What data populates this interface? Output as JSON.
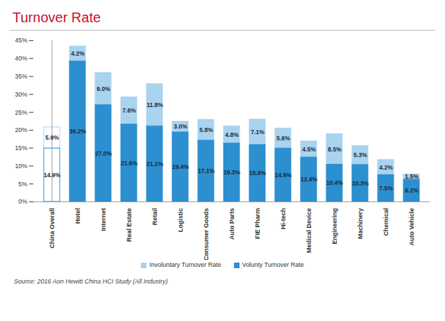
{
  "chart_data": {
    "type": "bar",
    "title": "Turnover Rate",
    "source": "Source: 2016 Aon Hewitt China HCI Study (All Industry)",
    "categories": [
      "China Overall",
      "Hotel",
      "Internet",
      "Real Estate",
      "Retail",
      "Logistic",
      "Consumer Goods",
      "Auto Parts",
      "FIE Pharm",
      "Hi-tech",
      "Medical Device",
      "Engineering",
      "Machinery",
      "Chemical",
      "Auto Vehicle"
    ],
    "series": [
      {
        "name": "Involuntary Turnover Rate",
        "color": "#a9d3ef",
        "values": [
          5.9,
          4.2,
          9.0,
          7.6,
          11.8,
          3.0,
          5.8,
          4.8,
          7.1,
          5.6,
          4.5,
          8.5,
          5.3,
          4.2,
          1.5
        ],
        "value_labels": [
          "5.9%",
          "4.2%",
          "9.0%",
          "7.6%",
          "11.8%",
          "3.0%",
          "5.8%",
          "4.8%",
          "7.1%",
          "5.6%",
          "4.5%",
          "8.5%",
          "5.3%",
          "4.2%",
          "1.5%"
        ]
      },
      {
        "name": "Volunty Turnover Rate",
        "color": "#2b8fd0",
        "values": [
          14.9,
          39.2,
          27.0,
          21.6,
          21.1,
          19.4,
          17.1,
          16.3,
          15.9,
          14.9,
          12.4,
          10.4,
          10.3,
          7.5,
          6.2
        ],
        "value_labels": [
          "14.9%",
          "39.2%",
          "27.0%",
          "21.6%",
          "21.1%",
          "19.4%",
          "17.1%",
          "16.3%",
          "15.9%",
          "14.9%",
          "12.4%",
          "10.4%",
          "10.3%",
          "7.5%",
          "6.2%"
        ]
      }
    ],
    "stacked": true,
    "data_labels": true,
    "legend": "bottom",
    "grid": false,
    "ylim": [
      0,
      45
    ],
    "yticks": [
      {
        "value": 0,
        "label": "0%"
      },
      {
        "value": 5,
        "label": "5%"
      },
      {
        "value": 10,
        "label": "10%"
      },
      {
        "value": 15,
        "label": "15%"
      },
      {
        "value": 20,
        "label": "20%"
      },
      {
        "value": 25,
        "label": "25%"
      },
      {
        "value": 30,
        "label": "30%"
      },
      {
        "value": 35,
        "label": "35%"
      },
      {
        "value": 40,
        "label": "40%"
      },
      {
        "value": 45,
        "label": "45%"
      }
    ]
  }
}
